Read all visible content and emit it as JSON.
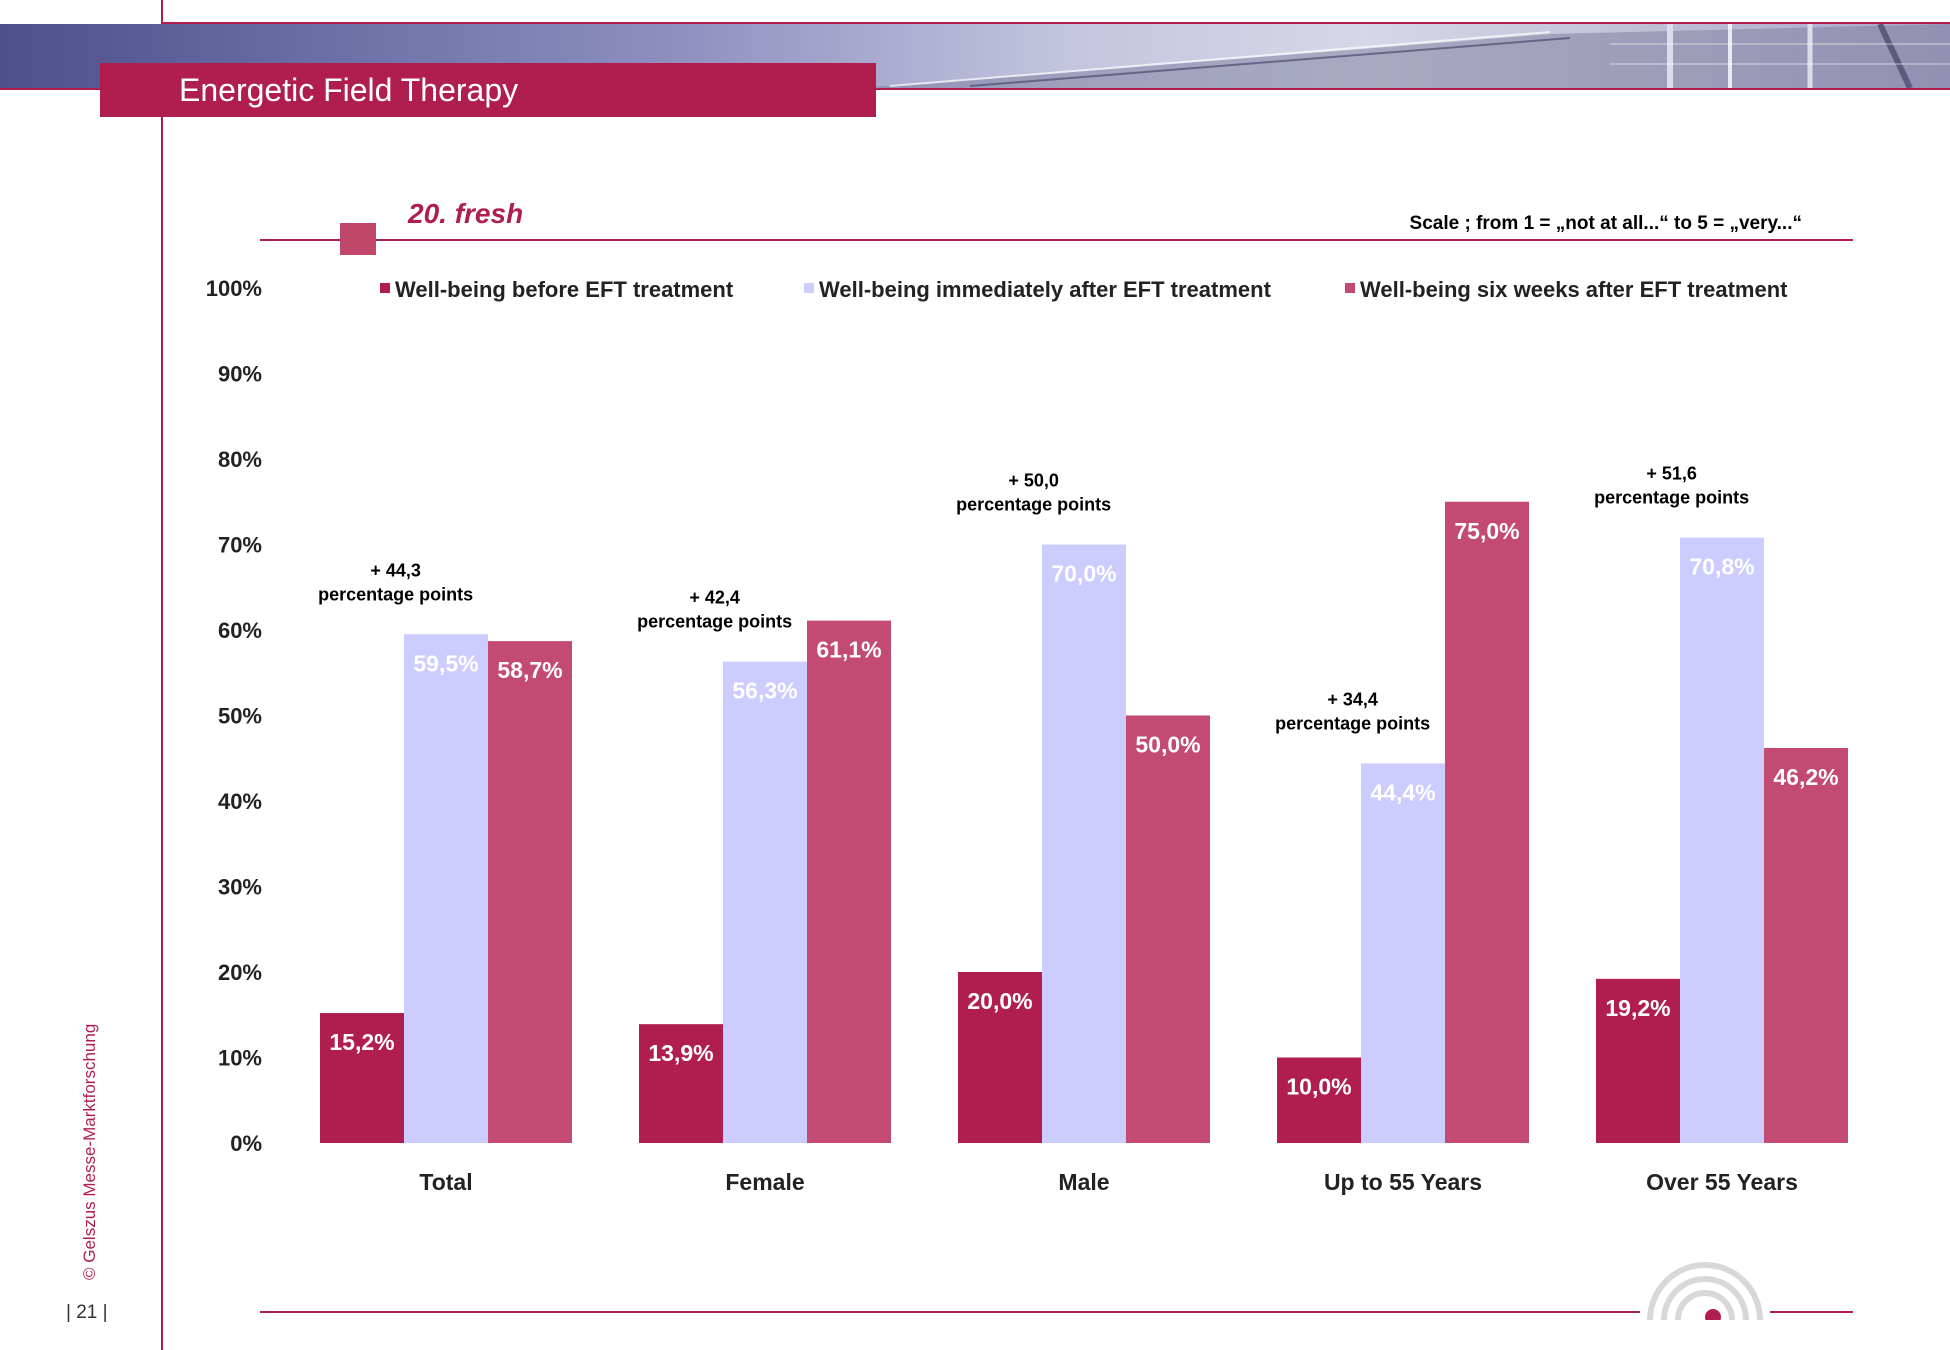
{
  "header": {
    "title": "Energetic Field Therapy",
    "section_title": "20. fresh",
    "scale_note": "Scale ; from 1 = „not at all...“  to 5 = „very...“"
  },
  "footer": {
    "page_number": "| 21 |",
    "copyright": "© Gelszus Messe-Marktforschung"
  },
  "colors": {
    "accent": "#b01e50",
    "series_before": "#b01e50",
    "series_immediately": "#ccccff",
    "series_six_weeks": "#c24a73"
  },
  "chart_data": {
    "type": "bar",
    "categories": [
      "Total",
      "Female",
      "Male",
      "Up to 55 Years",
      "Over 55 Years"
    ],
    "series": [
      {
        "name": "Well-being before EFT treatment",
        "values": [
          15.2,
          13.9,
          20.0,
          10.0,
          19.2
        ],
        "labels": [
          "15,2%",
          "13,9%",
          "20,0%",
          "10,0%",
          "19,2%"
        ]
      },
      {
        "name": "Well-being immediately after EFT treatment",
        "values": [
          59.5,
          56.3,
          70.0,
          44.4,
          70.8
        ],
        "labels": [
          "59,5%",
          "56,3%",
          "70,0%",
          "44,4%",
          "70,8%"
        ]
      },
      {
        "name": "Well-being six weeks after EFT treatment",
        "values": [
          58.7,
          61.1,
          50.0,
          75.0,
          46.2
        ],
        "labels": [
          "58,7%",
          "61,1%",
          "50,0%",
          "75,0%",
          "46,2%"
        ]
      }
    ],
    "annotations": [
      {
        "category": "Total",
        "line1": "+ 44,3",
        "line2": "percentage points"
      },
      {
        "category": "Female",
        "line1": "+ 42,4",
        "line2": "percentage points"
      },
      {
        "category": "Male",
        "line1": "+ 50,0",
        "line2": "percentage points"
      },
      {
        "category": "Up to 55 Years",
        "line1": "+ 34,4",
        "line2": "percentage points"
      },
      {
        "category": "Over 55 Years",
        "line1": "+ 51,6",
        "line2": "percentage points"
      }
    ],
    "yticks": [
      "0%",
      "10%",
      "20%",
      "30%",
      "40%",
      "50%",
      "60%",
      "70%",
      "80%",
      "90%",
      "100%"
    ],
    "ylim": [
      0,
      100
    ],
    "grid": false,
    "legend": "top"
  }
}
